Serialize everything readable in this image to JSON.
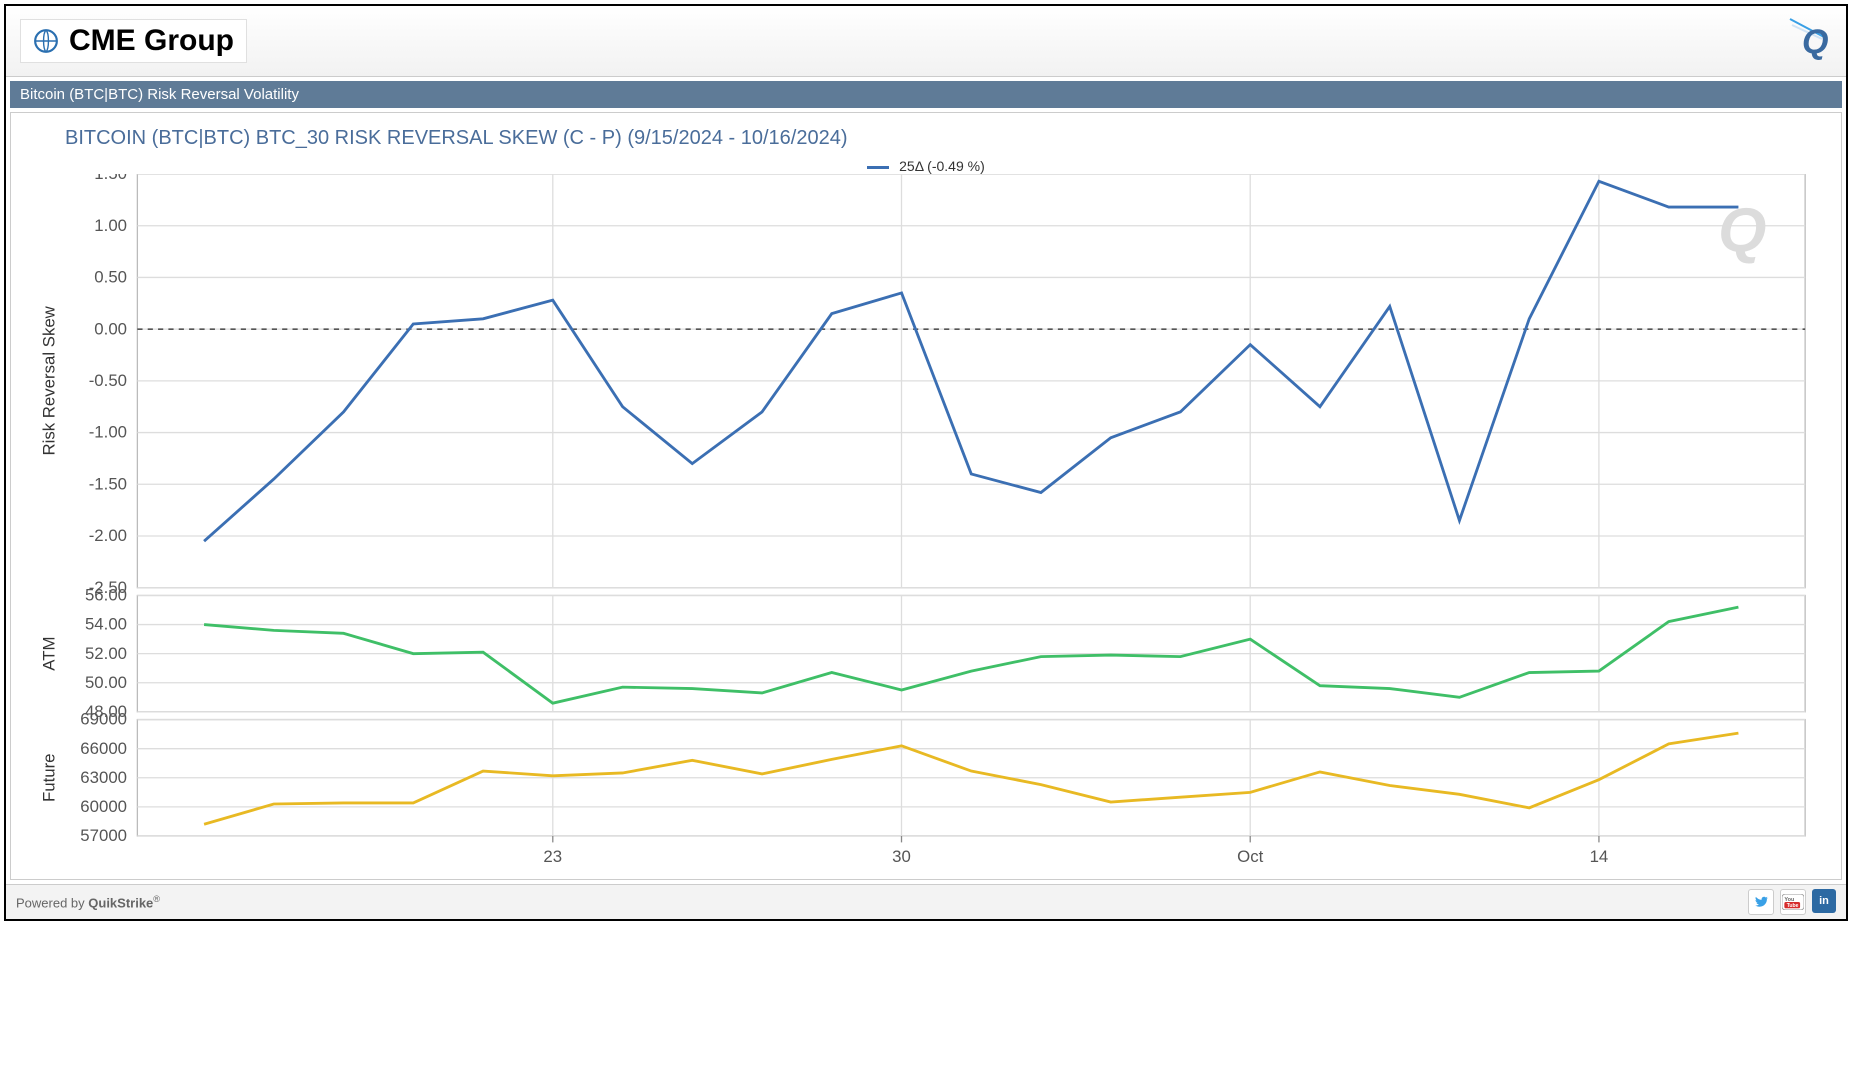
{
  "header": {
    "brand_text": "CME Group",
    "brand_color": "#000000",
    "globe_color": "#2a6fb0",
    "q_logo_color": "#3a6aa0"
  },
  "section_bar": {
    "text": "Bitcoin (BTC|BTC) Risk Reversal Volatility",
    "bg_color": "#5f7b97",
    "fg_color": "#ffffff"
  },
  "chart": {
    "title": "BITCOIN (BTC|BTC) BTC_30 RISK REVERSAL SKEW (C - P) (9/15/2024 - 10/16/2024)",
    "title_color": "#4a6d9a",
    "legend_label": "25Δ (-0.49 %)",
    "legend_color": "#3b6fb3",
    "plot_bg": "#ffffff",
    "grid_color": "#dddddd",
    "border_color": "#bbbbbb",
    "watermark_text": "Q",
    "watermark_color": "#dcdcdc",
    "x_categories_count": 23,
    "x_tick_indices": [
      5,
      10,
      15,
      20
    ],
    "x_tick_labels": [
      "23",
      "30",
      "Oct",
      "14"
    ],
    "panels": [
      {
        "name": "skew",
        "y_axis_label": "Risk Reversal Skew",
        "type": "line",
        "color": "#3b6fb3",
        "ylim": [
          -2.5,
          1.5
        ],
        "ytick_step": 0.5,
        "yticks": [
          1.5,
          1.0,
          0.5,
          0.0,
          -0.5,
          -1.0,
          -1.5,
          -2.0,
          -2.5
        ],
        "zero_line": true,
        "values": [
          -2.05,
          -1.45,
          -0.8,
          0.05,
          0.1,
          0.28,
          -0.75,
          -1.3,
          -0.8,
          0.15,
          0.35,
          -1.4,
          -1.58,
          -1.05,
          -0.8,
          -0.15,
          -0.75,
          0.22,
          -1.85,
          0.1,
          1.43,
          1.18,
          1.18
        ]
      },
      {
        "name": "atm",
        "y_axis_label": "ATM",
        "type": "line",
        "color": "#3fbf67",
        "ylim": [
          48.0,
          56.0
        ],
        "ytick_step": 2.0,
        "yticks": [
          56.0,
          54.0,
          52.0,
          50.0,
          48.0
        ],
        "zero_line": false,
        "values": [
          54.0,
          53.6,
          53.4,
          52.0,
          52.1,
          48.6,
          49.7,
          49.6,
          49.3,
          50.7,
          49.5,
          50.8,
          51.8,
          51.9,
          51.8,
          53.0,
          49.8,
          49.6,
          49.0,
          50.7,
          50.8,
          54.2,
          55.2
        ]
      },
      {
        "name": "future",
        "y_axis_label": "Future",
        "type": "line",
        "color": "#e8b923",
        "ylim": [
          57000,
          69000
        ],
        "ytick_step": 3000,
        "yticks": [
          69000,
          66000,
          63000,
          60000,
          57000
        ],
        "zero_line": false,
        "values": [
          58200,
          60300,
          60400,
          60400,
          63700,
          63200,
          63500,
          64800,
          63400,
          64900,
          66300,
          63700,
          62300,
          60500,
          61000,
          61500,
          63600,
          62200,
          61300,
          59900,
          62800,
          66500,
          67600
        ]
      }
    ],
    "tick_label_color": "#555555",
    "axis_label_color": "#333333",
    "tick_label_fontsize": 13,
    "axis_label_fontsize": 13,
    "line_width": 2.2
  },
  "footer": {
    "powered_prefix": "Powered by ",
    "powered_brand": "QuikStrike",
    "powered_suffix": "®",
    "social": {
      "twitter_bg": "#ffffff",
      "youtube_bg": "#ffffff",
      "linkedin_bg": "#2d6aa3"
    }
  }
}
